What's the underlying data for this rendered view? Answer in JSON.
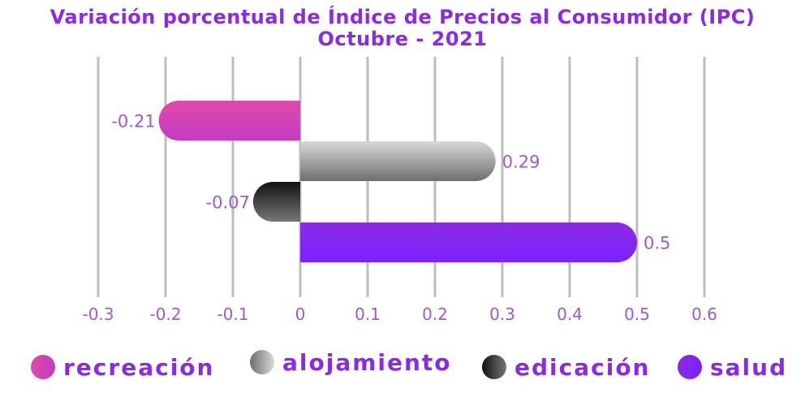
{
  "chart_data": {
    "type": "bar",
    "orientation": "horizontal",
    "title_line1": "Variación porcentual de Índice de Precios al Consumidor (IPC)",
    "title_line2": "Octubre - 2021",
    "categories": [
      "recreación",
      "alojamiento",
      "edicación",
      "salud"
    ],
    "values": [
      -0.21,
      0.29,
      -0.07,
      0.5
    ],
    "data_labels": [
      "-0.21",
      "0.29",
      "-0.07",
      "0.5"
    ],
    "xlim": [
      -0.3,
      0.6
    ],
    "x_ticks": [
      -0.3,
      -0.2,
      -0.1,
      0,
      0.1,
      0.2,
      0.3,
      0.4,
      0.5,
      0.6
    ],
    "x_tick_labels": [
      "-0.3",
      "-0.2",
      "-0.1",
      "0",
      "0.1",
      "0.2",
      "0.3",
      "0.4",
      "0.5",
      "0.6"
    ],
    "grid": "vertical",
    "legend_position": "bottom",
    "colors": {
      "recreación": [
        "#e04aa8",
        "#c23bc2"
      ],
      "alojamiento": [
        "#6e6e6e",
        "#d8d8d8"
      ],
      "edicación": [
        "#111111",
        "#777777"
      ],
      "salud": [
        "#8a2be2",
        "#7a22ff"
      ],
      "title": "#8a2be2",
      "labels": "#9b59d6",
      "grid": "#bdbdbd"
    }
  }
}
